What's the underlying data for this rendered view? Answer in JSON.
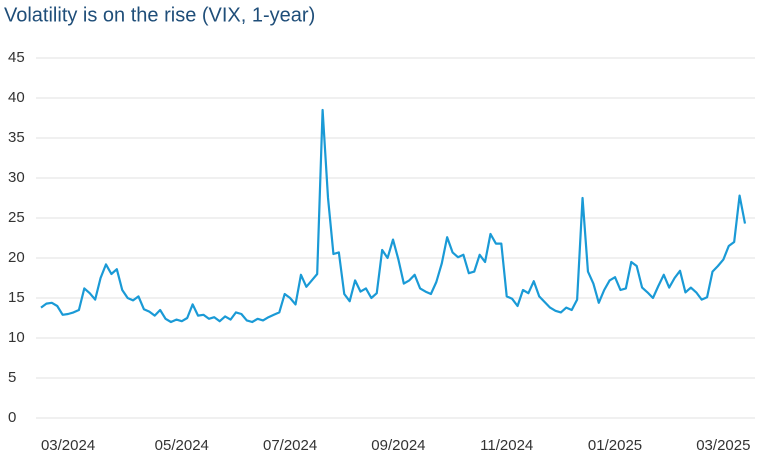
{
  "chart_data": {
    "type": "line",
    "title": "Volatility is on the rise (VIX, 1-year)",
    "categories": [
      null,
      null,
      null,
      null,
      null,
      "03/2024",
      null,
      null,
      null,
      null,
      null,
      null,
      null,
      null,
      null,
      null,
      null,
      null,
      null,
      null,
      null,
      null,
      null,
      null,
      null,
      null,
      "05/2024",
      null,
      null,
      null,
      null,
      null,
      null,
      null,
      null,
      null,
      null,
      null,
      null,
      null,
      null,
      null,
      null,
      null,
      null,
      null,
      "07/2024",
      null,
      null,
      null,
      null,
      null,
      null,
      null,
      null,
      null,
      null,
      null,
      null,
      null,
      null,
      null,
      null,
      null,
      null,
      null,
      "09/2024",
      null,
      null,
      null,
      null,
      null,
      null,
      null,
      null,
      null,
      null,
      null,
      null,
      null,
      null,
      null,
      null,
      null,
      null,
      null,
      "11/2024",
      null,
      null,
      null,
      null,
      null,
      null,
      null,
      null,
      null,
      null,
      null,
      null,
      null,
      null,
      null,
      null,
      null,
      null,
      null,
      "01/2025",
      null,
      null,
      null,
      null,
      null,
      null,
      null,
      null,
      null,
      null,
      null,
      null,
      null,
      null,
      null,
      null,
      null,
      null,
      null,
      "03/2025",
      null,
      null,
      null,
      null
    ],
    "values": [
      13.8,
      14.3,
      14.4,
      14.0,
      12.9,
      13.0,
      13.2,
      13.5,
      16.2,
      15.6,
      14.8,
      17.5,
      19.2,
      18.0,
      18.6,
      16.0,
      15.0,
      14.7,
      15.2,
      13.6,
      13.3,
      12.8,
      13.5,
      12.4,
      12.0,
      12.3,
      12.1,
      12.5,
      14.2,
      12.8,
      12.9,
      12.4,
      12.6,
      12.1,
      12.7,
      12.3,
      13.2,
      13.0,
      12.2,
      12.0,
      12.4,
      12.2,
      12.6,
      12.9,
      13.2,
      15.5,
      15.0,
      14.2,
      17.9,
      16.4,
      17.2,
      18.0,
      38.5,
      27.5,
      20.5,
      20.7,
      15.5,
      14.6,
      17.2,
      15.8,
      16.2,
      15.0,
      15.6,
      21.0,
      20.0,
      22.3,
      19.8,
      16.8,
      17.2,
      17.9,
      16.2,
      15.8,
      15.5,
      17.0,
      19.3,
      22.6,
      20.7,
      20.1,
      20.4,
      18.1,
      18.3,
      20.4,
      19.5,
      23.0,
      21.8,
      21.8,
      15.2,
      14.9,
      14.0,
      16.0,
      15.6,
      17.1,
      15.2,
      14.5,
      13.8,
      13.4,
      13.2,
      13.8,
      13.5,
      14.8,
      27.5,
      18.3,
      16.8,
      14.4,
      16.0,
      17.2,
      17.6,
      16.0,
      16.2,
      19.5,
      19.0,
      16.3,
      15.7,
      15.0,
      16.5,
      17.9,
      16.3,
      17.5,
      18.4,
      15.7,
      16.3,
      15.7,
      14.8,
      15.1,
      18.3,
      19.0,
      19.8,
      21.5,
      22.0,
      27.8,
      24.3
    ],
    "color": "#1a9ad6",
    "ylim": [
      0,
      45
    ],
    "yticks": [
      0,
      5,
      10,
      15,
      20,
      25,
      30,
      35,
      40,
      45
    ],
    "grid": true
  }
}
